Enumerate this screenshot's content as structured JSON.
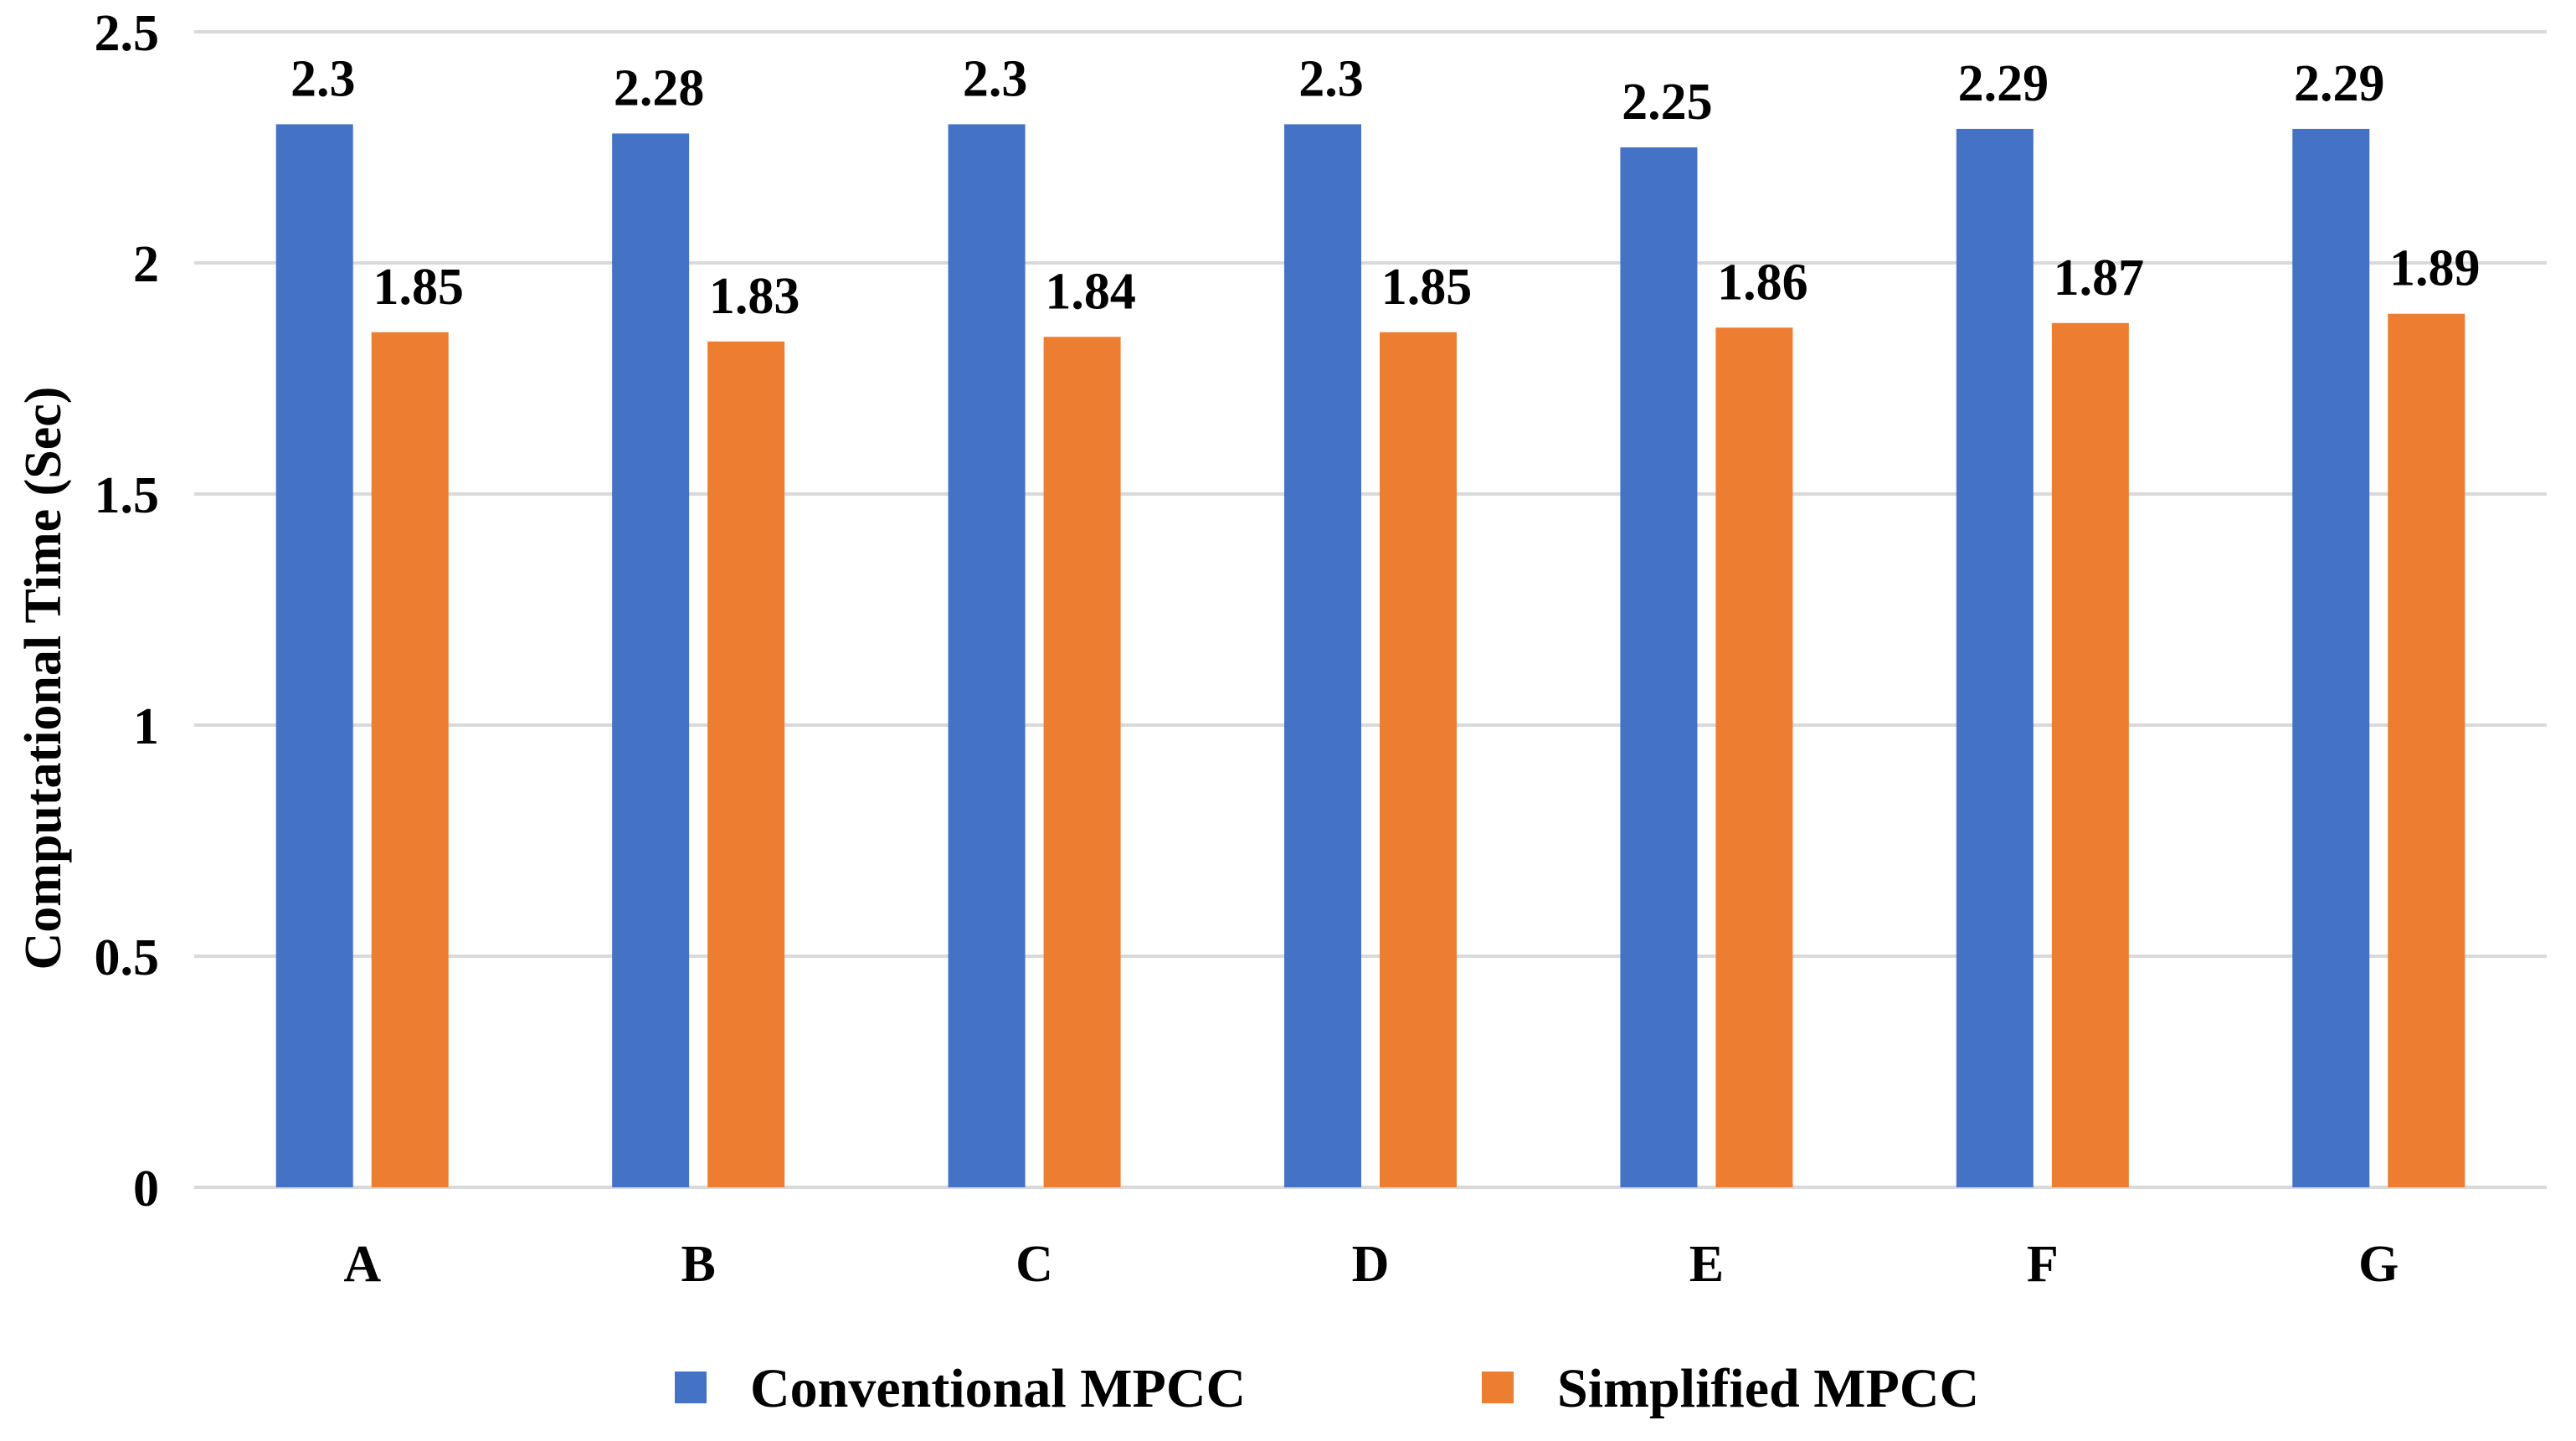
{
  "chart_data": {
    "type": "bar",
    "title": "",
    "xlabel": "",
    "ylabel": "Computational Time (Sec)",
    "ylim": [
      0,
      2.5
    ],
    "yticks": [
      0,
      0.5,
      1,
      1.5,
      2,
      2.5
    ],
    "ytick_labels": [
      "0",
      "0.5",
      "1",
      "1.5",
      "2",
      "2.5"
    ],
    "grid": true,
    "legend_position": "bottom",
    "categories": [
      "A",
      "B",
      "C",
      "D",
      "E",
      "F",
      "G"
    ],
    "series": [
      {
        "name": "Conventional MPCC",
        "color": "#4472C4",
        "values": [
          2.3,
          2.28,
          2.3,
          2.3,
          2.25,
          2.29,
          2.29
        ],
        "labels": [
          "2.3",
          "2.28",
          "2.3",
          "2.3",
          "2.25",
          "2.29",
          "2.29"
        ]
      },
      {
        "name": "Simplified MPCC",
        "color": "#ED7D31",
        "values": [
          1.85,
          1.83,
          1.84,
          1.85,
          1.86,
          1.87,
          1.89
        ],
        "labels": [
          "1.85",
          "1.83",
          "1.84",
          "1.85",
          "1.86",
          "1.87",
          "1.89"
        ]
      }
    ]
  }
}
